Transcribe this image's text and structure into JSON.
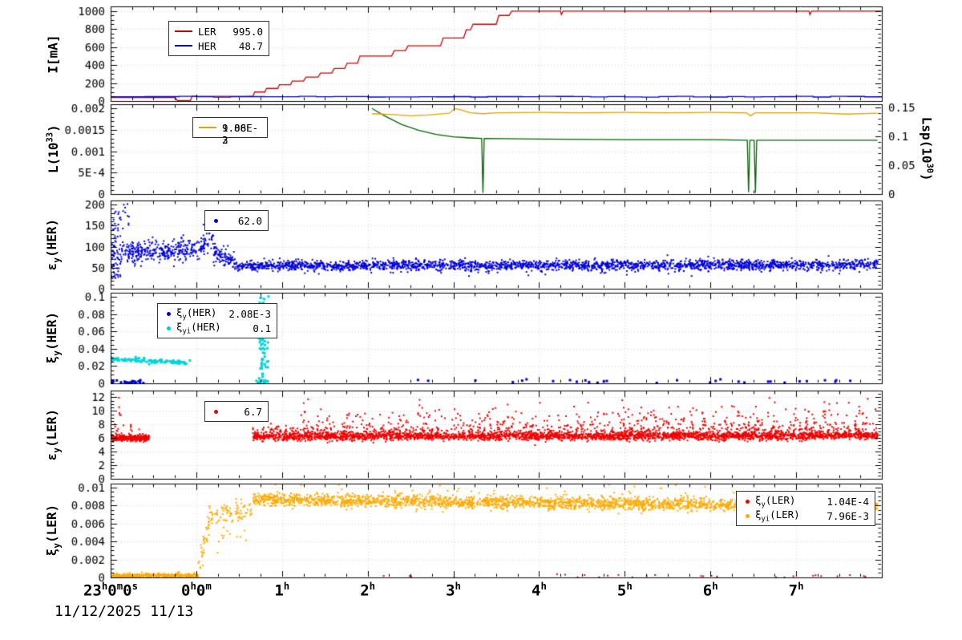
{
  "date_label": "11/12/2025 11/13",
  "x_axis": {
    "range_hours": [
      0,
      9
    ],
    "ticks": [
      {
        "t": 0,
        "label": "23^{h}0^{m}0^{s}"
      },
      {
        "t": 1,
        "label": "0^{h}0^{m}"
      },
      {
        "t": 2,
        "label": "1^{h}"
      },
      {
        "t": 3,
        "label": "2^{h}"
      },
      {
        "t": 4,
        "label": "3^{h}"
      },
      {
        "t": 5,
        "label": "4^{h}"
      },
      {
        "t": 6,
        "label": "5^{h}"
      },
      {
        "t": 7,
        "label": "6^{h}"
      },
      {
        "t": 8,
        "label": "7^{h}"
      }
    ]
  },
  "chart_data": [
    {
      "id": "current",
      "type": "line",
      "ylabel": "I[mA]",
      "yrange": [
        0,
        1050
      ],
      "ysub": 4,
      "yticks": [
        {
          "v": 0,
          "label": "0"
        },
        {
          "v": 200,
          "label": "200"
        },
        {
          "v": 400,
          "label": "400"
        },
        {
          "v": 600,
          "label": "600"
        },
        {
          "v": 800,
          "label": "800"
        },
        {
          "v": 1000,
          "label": "1000"
        }
      ],
      "legend": {
        "rows": [
          {
            "swatch": "line",
            "color": "#cc0000",
            "label": "LER",
            "value": "995.0"
          },
          {
            "swatch": "line",
            "color": "#0000cc",
            "label": "HER",
            "value": "48.7"
          }
        ]
      },
      "series": [
        {
          "name": "LER",
          "type": "line",
          "color": "#cc0000",
          "points": [
            [
              0,
              40
            ],
            [
              0.75,
              40
            ],
            [
              0.78,
              5
            ],
            [
              0.93,
              5
            ],
            [
              0.95,
              52
            ],
            [
              1.66,
              52
            ],
            [
              1.68,
              100
            ],
            [
              1.8,
              100
            ],
            [
              1.82,
              140
            ],
            [
              1.95,
              140
            ],
            [
              1.97,
              182
            ],
            [
              2.1,
              182
            ],
            [
              2.12,
              222
            ],
            [
              2.25,
              222
            ],
            [
              2.28,
              265
            ],
            [
              2.42,
              265
            ],
            [
              2.45,
              310
            ],
            [
              2.58,
              310
            ],
            [
              2.61,
              362
            ],
            [
              2.73,
              362
            ],
            [
              2.76,
              420
            ],
            [
              2.88,
              420
            ],
            [
              2.91,
              500
            ],
            [
              3.28,
              500
            ],
            [
              3.31,
              560
            ],
            [
              3.44,
              560
            ],
            [
              3.47,
              612
            ],
            [
              3.85,
              612
            ],
            [
              3.88,
              700
            ],
            [
              4.12,
              700
            ],
            [
              4.15,
              790
            ],
            [
              4.2,
              790
            ],
            [
              4.23,
              852
            ],
            [
              4.5,
              852
            ],
            [
              4.53,
              950
            ],
            [
              4.65,
              950
            ],
            [
              4.68,
              998
            ],
            [
              5.25,
              998
            ],
            [
              5.26,
              960
            ],
            [
              5.28,
              998
            ],
            [
              8.15,
              998
            ],
            [
              8.16,
              960
            ],
            [
              8.18,
              998
            ],
            [
              9,
              998
            ]
          ]
        },
        {
          "name": "HER",
          "type": "noisystep",
          "color": "#0000cc",
          "base": 48,
          "amp": 5,
          "period": 0.2,
          "seed": 11
        }
      ]
    },
    {
      "id": "luminosity",
      "type": "line",
      "ylabel": "L(10^{33})",
      "ylabel_right": "Lsp(10^{30})",
      "yrange": [
        0,
        0.0021
      ],
      "ysub": 5,
      "yticks": [
        {
          "v": 0,
          "label": "0"
        },
        {
          "v": 0.0005,
          "label": "5E-4"
        },
        {
          "v": 0.001,
          "label": "0.001"
        },
        {
          "v": 0.0015,
          "label": "0.0015"
        },
        {
          "v": 0.002,
          "label": "0.002"
        }
      ],
      "yrange_right": [
        0,
        0.1552
      ],
      "ysub_right": 5,
      "yticks_right": [
        {
          "v": 0,
          "label": "0"
        },
        {
          "v": 0.05,
          "label": "0.05"
        },
        {
          "v": 0.1,
          "label": "0.1"
        },
        {
          "v": 0.15,
          "label": "0.15"
        }
      ],
      "legend": {
        "rows": [
          {
            "swatch": "line",
            "color": "#e8a000",
            "values": [
              "9.88E-3",
              "1.06E-2"
            ]
          }
        ]
      },
      "series": [
        {
          "name": "Lsp",
          "type": "line",
          "color": "#006400",
          "axis": "right",
          "points": [
            [
              3.05,
              0.148
            ],
            [
              3.2,
              0.135
            ],
            [
              3.4,
              0.12
            ],
            [
              3.6,
              0.11
            ],
            [
              3.8,
              0.103
            ],
            [
              4.0,
              0.099
            ],
            [
              4.2,
              0.097
            ],
            [
              4.33,
              0.096
            ],
            [
              4.345,
              0.002
            ],
            [
              4.36,
              0.096
            ],
            [
              5.0,
              0.095
            ],
            [
              6.0,
              0.094
            ],
            [
              7.0,
              0.094
            ],
            [
              7.43,
              0.093
            ],
            [
              7.445,
              0.003
            ],
            [
              7.46,
              0.093
            ],
            [
              7.51,
              0.093
            ],
            [
              7.525,
              0.002
            ],
            [
              7.54,
              0.093
            ],
            [
              8.0,
              0.093
            ],
            [
              8.95,
              0.093
            ]
          ]
        },
        {
          "name": "L",
          "type": "line",
          "color": "#e8a000",
          "points": [
            [
              3.05,
              0.00188
            ],
            [
              3.3,
              0.00186
            ],
            [
              3.5,
              0.00183
            ],
            [
              3.7,
              0.00185
            ],
            [
              3.95,
              0.00189
            ],
            [
              4.02,
              0.002
            ],
            [
              4.1,
              0.00196
            ],
            [
              4.2,
              0.0019
            ],
            [
              4.35,
              0.00188
            ],
            [
              4.5,
              0.0019
            ],
            [
              5.0,
              0.00191
            ],
            [
              5.5,
              0.0019
            ],
            [
              6.0,
              0.00191
            ],
            [
              6.5,
              0.0019
            ],
            [
              7.0,
              0.00191
            ],
            [
              7.42,
              0.0019
            ],
            [
              7.47,
              0.00183
            ],
            [
              7.52,
              0.0019
            ],
            [
              8.2,
              0.0019
            ],
            [
              8.6,
              0.00187
            ],
            [
              8.95,
              0.00189
            ]
          ]
        }
      ]
    },
    {
      "id": "ey_her",
      "type": "scatter",
      "ylabel": "ε_{y}(HER)",
      "yrange": [
        0,
        210
      ],
      "ysub": 5,
      "yticks": [
        {
          "v": 0,
          "label": "0"
        },
        {
          "v": 50,
          "label": "50"
        },
        {
          "v": 100,
          "label": "100"
        },
        {
          "v": 150,
          "label": "150"
        },
        {
          "v": 200,
          "label": "200"
        }
      ],
      "legend": {
        "rows": [
          {
            "swatch": "dot",
            "color": "#0000dd",
            "value": "62.0"
          }
        ]
      },
      "series": [
        {
          "name": "ey_her",
          "type": "scatter",
          "color": "#0000dd",
          "seed": 21,
          "segments": [
            {
              "t0": 0,
              "t1": 0.12,
              "y0": 70,
              "y1": 70,
              "spread": 40,
              "n": 70,
              "ymin": 25,
              "ymax": 205
            },
            {
              "t0": 0.03,
              "t1": 0.22,
              "y0": 165,
              "y1": 175,
              "spread": 20,
              "n": 20,
              "ymax": 205
            },
            {
              "t0": 0.12,
              "t1": 1.1,
              "y0": 86,
              "y1": 96,
              "spread": 13,
              "n": 340,
              "ymin": 40
            },
            {
              "t0": 1.05,
              "t1": 1.2,
              "y0": 112,
              "y1": 120,
              "spread": 14,
              "n": 35
            },
            {
              "t0": 1.2,
              "t1": 1.45,
              "y0": 88,
              "y1": 62,
              "spread": 11,
              "n": 90,
              "ymin": 40
            },
            {
              "t0": 1.45,
              "t1": 8.95,
              "y0": 55,
              "y1": 57,
              "spread": 6,
              "n": 2300,
              "ymin": 35
            },
            {
              "t0": 1.5,
              "t1": 8.9,
              "y0": 46,
              "y1": 46,
              "spread": 9,
              "n": 70,
              "ymin": 30
            }
          ]
        }
      ]
    },
    {
      "id": "xy_her",
      "type": "scatter",
      "ylabel": "ξ_{y}(HER)",
      "yrange": [
        0,
        0.105
      ],
      "ysub": 4,
      "yticks": [
        {
          "v": 0,
          "label": "0"
        },
        {
          "v": 0.02,
          "label": "0.02"
        },
        {
          "v": 0.04,
          "label": "0.04"
        },
        {
          "v": 0.06,
          "label": "0.06"
        },
        {
          "v": 0.08,
          "label": "0.08"
        },
        {
          "v": 0.1,
          "label": "0.1"
        }
      ],
      "legend": {
        "rows": [
          {
            "swatch": "dot",
            "color": "#0000dd",
            "label": "ξ_{y}(HER)",
            "value": "2.08E-3"
          },
          {
            "swatch": "dot",
            "color": "#00cccc",
            "label": "ξ_{yi}(HER)",
            "value": "0.1"
          }
        ]
      },
      "series": [
        {
          "name": "xyi_her",
          "type": "scatter",
          "color": "#00d5d5",
          "seed": 31,
          "size": 3,
          "segments": [
            {
              "t0": 0,
              "t1": 0.93,
              "y0": 0.0285,
              "y1": 0.0235,
              "spread": 0.0012,
              "n": 100
            },
            {
              "cluster": true,
              "t": 1.78,
              "tspread": 0.03,
              "ymin": 0.003,
              "ymax": 0.102,
              "n": 80
            },
            {
              "t0": 1.7,
              "t1": 1.85,
              "y0": 0.002,
              "y1": 0.002,
              "spread": 0.0015,
              "n": 15,
              "ymin": 0
            }
          ]
        },
        {
          "name": "xy_her",
          "type": "scatter",
          "color": "#0000dd",
          "seed": 32,
          "size": 3,
          "segments": [
            {
              "t0": 0,
              "t1": 0.4,
              "y0": 0.0018,
              "y1": 0.0018,
              "spread": 0.0012,
              "n": 22,
              "ymin": 0.0003
            },
            {
              "t0": 3.4,
              "t1": 8.9,
              "y0": 0.0022,
              "y1": 0.0022,
              "spread": 0.0013,
              "n": 30,
              "ymin": 0.0004
            }
          ]
        }
      ]
    },
    {
      "id": "ey_ler",
      "type": "scatter",
      "ylabel": "ε_{y}(LER)",
      "yrange": [
        0,
        13
      ],
      "ysub": 4,
      "yticks": [
        {
          "v": 0,
          "label": "0"
        },
        {
          "v": 2,
          "label": "2"
        },
        {
          "v": 4,
          "label": "4"
        },
        {
          "v": 6,
          "label": "6"
        },
        {
          "v": 8,
          "label": "8"
        },
        {
          "v": 10,
          "label": "10"
        },
        {
          "v": 12,
          "label": "12"
        }
      ],
      "legend": {
        "rows": [
          {
            "swatch": "dot",
            "color": "#ee0000",
            "value": "6.7"
          }
        ]
      },
      "series": [
        {
          "name": "ey_ler",
          "type": "scatter",
          "color": "#ee0000",
          "seed": 41,
          "segments": [
            {
              "t0": 0,
              "t1": 0.45,
              "y0": 6.0,
              "y1": 6.0,
              "spread": 0.25,
              "n": 280
            },
            {
              "t0": 0,
              "t1": 0.45,
              "y0": 6.9,
              "y1": 6.9,
              "spread": 0.5,
              "n": 25
            },
            {
              "t0": 0.02,
              "t1": 0.12,
              "y0": 9.5,
              "y1": 9.5,
              "spread": 1.2,
              "n": 6
            },
            {
              "t0": 1.66,
              "t1": 8.95,
              "y0": 6.25,
              "y1": 6.35,
              "spread": 0.3,
              "n": 2700
            },
            {
              "t0": 1.66,
              "t1": 8.95,
              "y0": 7.0,
              "y1": 7.2,
              "spread": 0.55,
              "n": 650
            },
            {
              "t0": 2.2,
              "t1": 8.95,
              "y0": 7.8,
              "y1": 8.8,
              "spread": 1.4,
              "n": 420,
              "ymax": 12.6
            }
          ]
        }
      ]
    },
    {
      "id": "xy_ler",
      "type": "scatter",
      "ylabel": "ξ_{y}(LER)",
      "yrange": [
        0,
        0.0104
      ],
      "ysub": 4,
      "yticks": [
        {
          "v": 0,
          "label": "0"
        },
        {
          "v": 0.002,
          "label": "0.002"
        },
        {
          "v": 0.004,
          "label": "0.004"
        },
        {
          "v": 0.006,
          "label": "0.006"
        },
        {
          "v": 0.008,
          "label": "0.008"
        },
        {
          "v": 0.01,
          "label": "0.01"
        }
      ],
      "legend": {
        "rows": [
          {
            "swatch": "dot",
            "color": "#ee0000",
            "label": "ξ_{y}(LER)",
            "value": "1.04E-4"
          },
          {
            "swatch": "dot",
            "color": "#ffaa00",
            "label": "ξ_{yi}(LER)",
            "value": "7.96E-3"
          }
        ]
      },
      "series": [
        {
          "name": "xyi_ler",
          "type": "scatter",
          "color": "#ffaa00",
          "seed": 51,
          "segments": [
            {
              "t0": 0,
              "t1": 1.02,
              "y0": 0.00018,
              "y1": 0.00022,
              "spread": 0.00012,
              "n": 340,
              "ymin": 0
            },
            {
              "t0": 1.02,
              "t1": 1.16,
              "y0": 0.0008,
              "y1": 0.0066,
              "spread": 0.0007,
              "n": 40
            },
            {
              "t0": 1.16,
              "t1": 1.66,
              "y0": 0.007,
              "y1": 0.0074,
              "spread": 0.0005,
              "n": 80
            },
            {
              "t0": 1.2,
              "t1": 1.6,
              "y0": 0.0046,
              "y1": 0.005,
              "spread": 0.001,
              "n": 12
            },
            {
              "t0": 1.66,
              "t1": 8.95,
              "y0": 0.0086,
              "y1": 0.0079,
              "spread": 0.00035,
              "n": 2500
            },
            {
              "t0": 1.7,
              "t1": 8.9,
              "y0": 0.0094,
              "y1": 0.0089,
              "spread": 0.0007,
              "n": 70,
              "ymax": 0.0103
            }
          ]
        },
        {
          "name": "xy_ler",
          "type": "scatter",
          "color": "#ee0000",
          "seed": 52,
          "segments": [
            {
              "t0": 2.85,
              "t1": 8.9,
              "y0": 0.00015,
              "y1": 0.00015,
              "spread": 0.0001,
              "n": 28,
              "ymin": 0
            }
          ]
        }
      ]
    }
  ]
}
